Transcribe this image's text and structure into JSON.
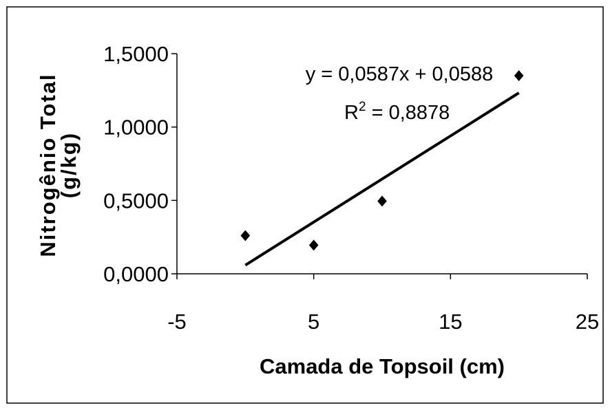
{
  "chart_data": {
    "type": "scatter",
    "x": [
      0,
      5,
      10,
      20
    ],
    "y": [
      0.26,
      0.195,
      0.495,
      1.35
    ],
    "xlim": [
      -5,
      25
    ],
    "ylim": [
      0,
      1.5
    ],
    "x_ticks": [
      "-5",
      "5",
      "15",
      "25"
    ],
    "x_tick_values": [
      -5,
      5,
      15,
      25
    ],
    "y_ticks": [
      "0,0000",
      "0,5000",
      "1,0000",
      "1,5000"
    ],
    "y_tick_values": [
      0,
      0.5,
      1.0,
      1.5
    ],
    "xlabel": "Camada de Topsoil (cm)",
    "ylabel_line1": "Nitrogênio Total",
    "ylabel_line2": "(g/kg)",
    "marker": "diamond",
    "marker_color": "#000000",
    "grid": false,
    "legend": "none",
    "trendline": {
      "type": "linear",
      "slope": 0.0587,
      "intercept": 0.0588,
      "x_range": [
        0,
        20
      ],
      "equation": "y = 0,0587x + 0,0588",
      "r2_prefix": "R",
      "r2_sup": "2",
      "r2_value": " = 0,8878"
    }
  }
}
